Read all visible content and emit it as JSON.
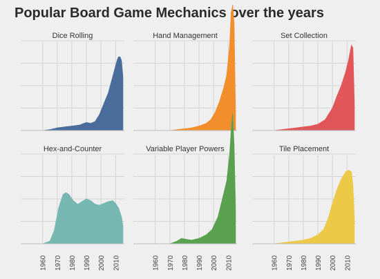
{
  "chart_data": {
    "type": "area",
    "title": "Popular Board Game Mechanics over the years",
    "xlabel": "",
    "ylabel": "",
    "x_ticks": [
      1960,
      1970,
      1980,
      1990,
      2000,
      2010
    ],
    "xlim": [
      1945,
      2016
    ],
    "ylim": [
      0,
      1
    ],
    "y_gridlines": [
      0.25,
      0.5,
      0.75,
      1.0
    ],
    "grid": true,
    "layout": "facet-grid 2 rows x 3 columns",
    "facets": [
      {
        "name": "Dice Rolling",
        "color": "#4a6c9b",
        "x": [
          1945,
          1960,
          1965,
          1970,
          1975,
          1980,
          1985,
          1990,
          1993,
          1996,
          1999,
          2002,
          2005,
          2008,
          2010,
          2011,
          2012,
          2013,
          2014,
          2015
        ],
        "y": [
          0.0,
          0.0,
          0.01,
          0.03,
          0.04,
          0.05,
          0.06,
          0.09,
          0.08,
          0.1,
          0.18,
          0.3,
          0.42,
          0.6,
          0.72,
          0.78,
          0.82,
          0.82,
          0.78,
          0.6
        ]
      },
      {
        "name": "Hand Management",
        "color": "#f28e2b",
        "x": [
          1945,
          1970,
          1975,
          1980,
          1985,
          1990,
          1995,
          1998,
          2001,
          2004,
          2007,
          2009,
          2010,
          2011,
          2012,
          2013,
          2014,
          2015
        ],
        "y": [
          0.0,
          0.0,
          0.01,
          0.02,
          0.03,
          0.05,
          0.08,
          0.12,
          0.2,
          0.32,
          0.48,
          0.62,
          0.78,
          0.95,
          1.3,
          1.4,
          1.2,
          0.2
        ]
      },
      {
        "name": "Set Collection",
        "color": "#e15759",
        "x": [
          1945,
          1960,
          1965,
          1970,
          1975,
          1980,
          1985,
          1990,
          1995,
          2000,
          2003,
          2006,
          2009,
          2011,
          2013,
          2014,
          2015
        ],
        "y": [
          0.0,
          0.0,
          0.01,
          0.02,
          0.03,
          0.04,
          0.05,
          0.07,
          0.12,
          0.25,
          0.38,
          0.5,
          0.65,
          0.78,
          0.95,
          0.92,
          0.3
        ]
      },
      {
        "name": "Hex-and-Counter",
        "color": "#76b7b2",
        "x": [
          1945,
          1960,
          1965,
          1968,
          1971,
          1974,
          1976,
          1978,
          1981,
          1984,
          1987,
          1990,
          1993,
          1996,
          1999,
          2002,
          2005,
          2008,
          2010,
          2012,
          2014,
          2015
        ],
        "y": [
          0.0,
          0.0,
          0.03,
          0.15,
          0.4,
          0.55,
          0.57,
          0.55,
          0.48,
          0.44,
          0.47,
          0.5,
          0.48,
          0.44,
          0.43,
          0.45,
          0.47,
          0.48,
          0.45,
          0.4,
          0.3,
          0.2
        ]
      },
      {
        "name": "Variable Player Powers",
        "color": "#59a14f",
        "x": [
          1945,
          1970,
          1975,
          1978,
          1981,
          1985,
          1990,
          1995,
          1999,
          2003,
          2006,
          2009,
          2011,
          2012,
          2013,
          2014,
          2015
        ],
        "y": [
          0.0,
          0.0,
          0.03,
          0.06,
          0.05,
          0.04,
          0.06,
          0.1,
          0.16,
          0.3,
          0.5,
          0.7,
          1.0,
          1.25,
          1.45,
          1.1,
          0.4
        ]
      },
      {
        "name": "Tile Placement",
        "color": "#edc948",
        "x": [
          1945,
          1960,
          1965,
          1970,
          1975,
          1980,
          1985,
          1990,
          1994,
          1997,
          2000,
          2003,
          2006,
          2009,
          2011,
          2013,
          2014,
          2015
        ],
        "y": [
          0.0,
          0.0,
          0.01,
          0.02,
          0.03,
          0.04,
          0.06,
          0.1,
          0.16,
          0.28,
          0.45,
          0.6,
          0.72,
          0.8,
          0.82,
          0.8,
          0.65,
          0.3
        ]
      }
    ]
  }
}
